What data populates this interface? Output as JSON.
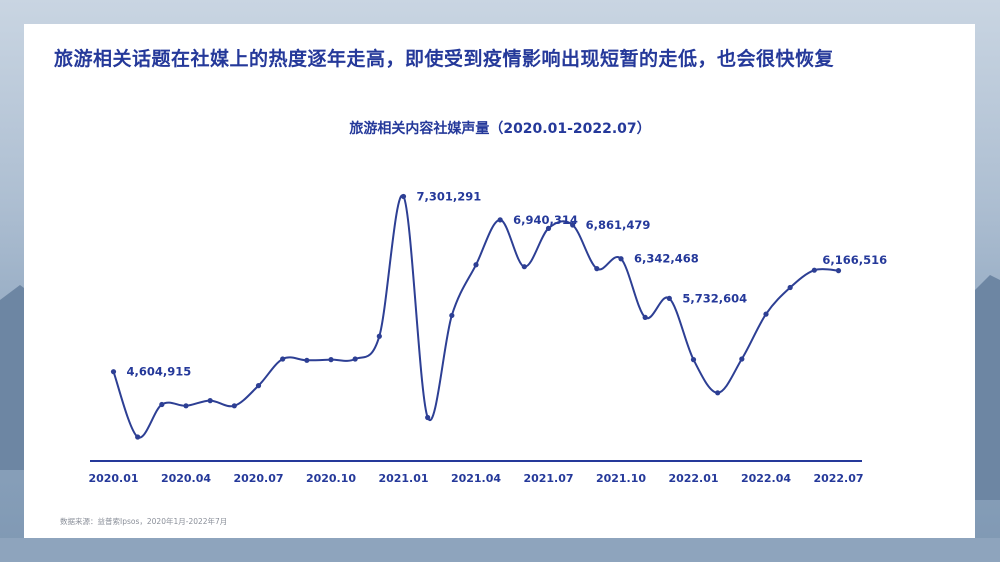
{
  "headline": "旅游相关话题在社媒上的热度逐年走高，即使受到疫情影响出现短暂的走低，也会很快恢复",
  "source_note": "数据来源：益普索Ipsos，2020年1月-2022年7月",
  "colors": {
    "accent": "#25399a",
    "line": "#2d3f94",
    "card": "#ffffff"
  },
  "chart_data": {
    "type": "line",
    "title": "旅游相关内容社媒声量（2020.01-2022.07）",
    "xlabel": "",
    "ylabel": "",
    "x_tick_labels": [
      "2020.01",
      "2020.04",
      "2020.07",
      "2020.10",
      "2021.01",
      "2021.04",
      "2021.07",
      "2021.10",
      "2022.01",
      "2022.04",
      "2022.07"
    ],
    "ylim": [
      3400000,
      7600000
    ],
    "grid": false,
    "legend": "none",
    "series": [
      {
        "x": [
          "2020.01",
          "2020.02",
          "2020.03",
          "2020.04",
          "2020.05",
          "2020.06",
          "2020.07",
          "2020.08",
          "2020.09",
          "2020.10",
          "2020.11",
          "2020.12",
          "2021.01",
          "2021.02",
          "2021.03",
          "2021.04",
          "2021.05",
          "2021.06",
          "2021.07",
          "2021.08",
          "2021.09",
          "2021.10",
          "2021.11",
          "2021.12",
          "2022.01",
          "2022.02",
          "2022.03",
          "2022.04",
          "2022.05",
          "2022.06",
          "2022.07"
        ],
        "values": [
          4604915,
          3600000,
          4100000,
          4080000,
          4160000,
          4080000,
          4390000,
          4800000,
          4780000,
          4790000,
          4800000,
          5150000,
          7301291,
          3900000,
          5470000,
          6250000,
          6940314,
          6220000,
          6810000,
          6861479,
          6190000,
          6342468,
          5440000,
          5732604,
          4790000,
          4280000,
          4800000,
          5490000,
          5900000,
          6166516,
          6160000
        ]
      }
    ],
    "data_labels": [
      {
        "index": 0,
        "text": "4,604,915"
      },
      {
        "index": 12,
        "text": "7,301,291"
      },
      {
        "index": 16,
        "text": "6,940,314"
      },
      {
        "index": 19,
        "text": "6,861,479"
      },
      {
        "index": 21,
        "text": "6,342,468"
      },
      {
        "index": 23,
        "text": "5,732,604"
      },
      {
        "index": 29,
        "text": "6,166,516"
      }
    ]
  }
}
